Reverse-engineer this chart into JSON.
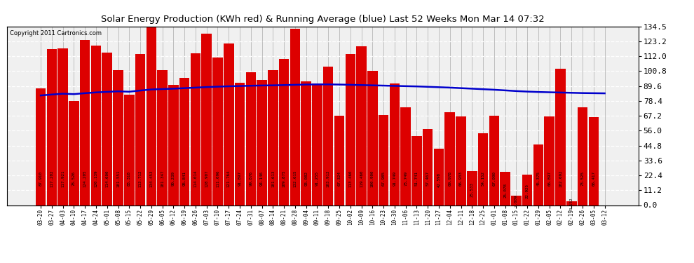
{
  "title": "Solar Energy Production (KWh red) & Running Average (blue) Last 52 Weeks Mon Mar 14 07:32",
  "copyright": "Copyright 2011 Cartronics.com",
  "bar_color": "#dd0000",
  "avg_line_color": "#0000cc",
  "background_color": "#ffffff",
  "plot_bg_color": "#f0f0f0",
  "grid_color": "#aaaaaa",
  "ylim": [
    0,
    134.5
  ],
  "yticks": [
    0.0,
    11.2,
    22.4,
    33.6,
    44.8,
    56.0,
    67.2,
    78.4,
    89.6,
    100.8,
    112.0,
    123.2,
    134.5
  ],
  "dates": [
    "03-20",
    "03-27",
    "04-03",
    "04-10",
    "04-17",
    "04-24",
    "05-01",
    "05-08",
    "05-15",
    "05-22",
    "05-29",
    "06-05",
    "06-12",
    "06-19",
    "06-26",
    "07-03",
    "07-10",
    "07-17",
    "07-24",
    "07-31",
    "08-07",
    "08-14",
    "08-21",
    "08-28",
    "09-04",
    "09-11",
    "09-18",
    "09-25",
    "10-02",
    "10-09",
    "10-16",
    "10-23",
    "10-30",
    "11-06",
    "11-13",
    "11-20",
    "11-27",
    "12-04",
    "12-11",
    "12-18",
    "12-25",
    "01-01",
    "01-08",
    "01-15",
    "01-22",
    "01-29",
    "02-05",
    "02-12",
    "02-19",
    "02-26",
    "03-05",
    "03-12"
  ],
  "values": [
    87.91,
    117.202,
    117.921,
    78.526,
    124.205,
    120.139,
    114.6,
    101.551,
    83.318,
    113.712,
    134.453,
    101.347,
    90.239,
    95.841,
    114.014,
    128.907,
    111.096,
    121.764,
    91.897,
    99.876,
    94.146,
    101.613,
    109.875,
    132.615,
    93.082,
    91.255,
    103.912,
    67.324,
    113.46,
    119.46,
    100.9,
    67.985,
    91.749,
    73.749,
    51.741,
    57.467,
    42.598,
    69.978,
    66.933,
    25.533,
    54.152,
    67.09,
    25.078,
    7.009,
    22.925,
    45.375,
    66.897,
    102.692,
    3.152,
    73.525,
    66.417,
    0.0
  ],
  "running_avg": [
    82.5,
    83.2,
    83.8,
    83.5,
    84.2,
    84.8,
    85.2,
    85.6,
    85.3,
    86.2,
    87.0,
    87.3,
    87.6,
    88.0,
    88.4,
    88.8,
    89.1,
    89.4,
    89.6,
    89.8,
    90.0,
    90.1,
    90.3,
    90.5,
    90.7,
    90.8,
    90.8,
    90.7,
    90.5,
    90.3,
    90.1,
    89.9,
    89.7,
    89.5,
    89.3,
    89.0,
    88.7,
    88.4,
    88.0,
    87.6,
    87.2,
    86.8,
    86.3,
    85.8,
    85.4,
    85.1,
    84.9,
    84.7,
    84.5,
    84.3,
    84.2,
    84.1
  ]
}
